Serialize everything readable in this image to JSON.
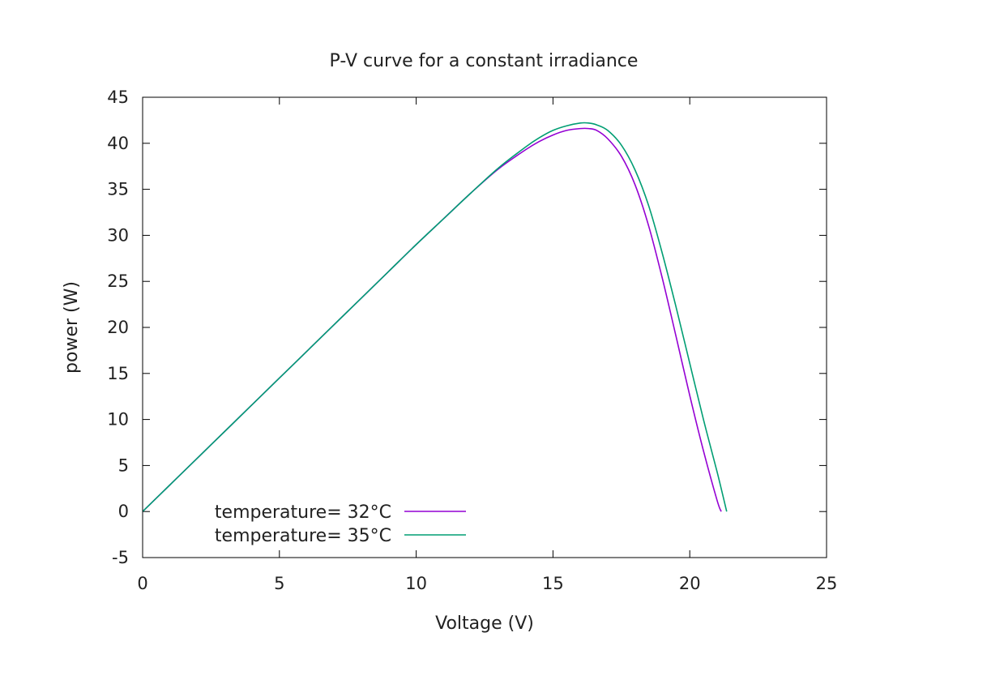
{
  "chart_data": {
    "type": "line",
    "title": "P-V curve for a constant irradiance",
    "xlabel": "Voltage (V)",
    "ylabel": "power (W)",
    "xlim": [
      0,
      25
    ],
    "ylim": [
      -5,
      45
    ],
    "xticks": [
      0,
      5,
      10,
      15,
      20,
      25
    ],
    "yticks": [
      -5,
      0,
      5,
      10,
      15,
      20,
      25,
      30,
      35,
      40,
      45
    ],
    "grid": false,
    "legend_position": "bottom-left",
    "series": [
      {
        "name": "temperature= 32°C",
        "color": "#9400d3",
        "x": [
          0,
          1,
          2,
          3,
          4,
          5,
          6,
          7,
          8,
          9,
          10,
          11,
          12,
          13,
          14,
          14.5,
          15,
          15.5,
          16,
          16.3,
          16.6,
          17,
          17.5,
          18,
          18.5,
          19,
          19.5,
          20,
          20.5,
          21,
          21.15
        ],
        "y": [
          0,
          2.9,
          5.8,
          8.7,
          11.6,
          14.5,
          17.4,
          20.3,
          23.2,
          26.1,
          29.0,
          31.8,
          34.6,
          37.2,
          39.3,
          40.2,
          40.9,
          41.4,
          41.6,
          41.6,
          41.4,
          40.5,
          38.6,
          35.5,
          31.0,
          25.3,
          19.0,
          12.6,
          6.6,
          1.2,
          0
        ]
      },
      {
        "name": "temperature= 35°C",
        "color": "#009e73",
        "x": [
          0,
          1,
          2,
          3,
          4,
          5,
          6,
          7,
          8,
          9,
          10,
          11,
          12,
          13,
          14,
          14.5,
          15,
          15.5,
          16,
          16.3,
          16.6,
          17,
          17.5,
          18,
          18.5,
          19,
          19.5,
          20,
          20.5,
          21,
          21.35
        ],
        "y": [
          0,
          2.9,
          5.8,
          8.7,
          11.6,
          14.5,
          17.4,
          20.3,
          23.2,
          26.1,
          29.0,
          31.8,
          34.6,
          37.3,
          39.6,
          40.6,
          41.4,
          41.9,
          42.2,
          42.2,
          42.0,
          41.4,
          39.8,
          37.1,
          33.2,
          28.0,
          22.2,
          16.1,
          10.0,
          4.3,
          0
        ]
      }
    ]
  }
}
